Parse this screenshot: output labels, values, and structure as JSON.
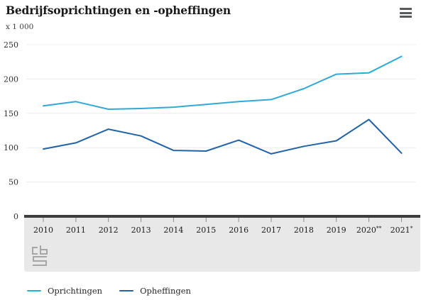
{
  "header": {
    "title": "Bedrijfsoprichtingen en -opheffingen",
    "unit_label": "x 1 000"
  },
  "icons": {
    "menu": "hamburger-icon",
    "logo": "cbs-logo"
  },
  "chart_data": {
    "type": "line",
    "title": "Bedrijfsoprichtingen en -opheffingen",
    "ylabel": "x 1 000",
    "xlabel": "",
    "categories": [
      "2010",
      "2011",
      "2012",
      "2013",
      "2014",
      "2015",
      "2016",
      "2017",
      "2018",
      "2019",
      "2020",
      "2021"
    ],
    "category_marks": {
      "2020": "**",
      "2021": "*"
    },
    "series": [
      {
        "name": "Oprichtingen",
        "color": "#31a8d6",
        "values": [
          161,
          167,
          156,
          157,
          159,
          163,
          167,
          170,
          186,
          207,
          209,
          233
        ]
      },
      {
        "name": "Opheffingen",
        "color": "#2263a5",
        "values": [
          98,
          107,
          127,
          117,
          96,
          95,
          111,
          91,
          102,
          110,
          141,
          92
        ]
      }
    ],
    "ylim": [
      0,
      250
    ],
    "yticks": [
      0,
      50,
      100,
      150,
      200,
      250
    ],
    "grid": true,
    "legend_position": "bottom-left"
  },
  "legend": {
    "items": [
      "Oprichtingen",
      "Opheffingen"
    ]
  },
  "colors": {
    "gridline": "#ececec",
    "axis_line": "#3d3d3d",
    "axis_band": "#e8e8e8",
    "tick": "#8a8a8a",
    "x_label_text": "#1a1a1a",
    "y_label_text": "#303030",
    "title_text": "#1a1a1a",
    "logo": "#a6a6a6",
    "menu_icon": "#58595b"
  }
}
